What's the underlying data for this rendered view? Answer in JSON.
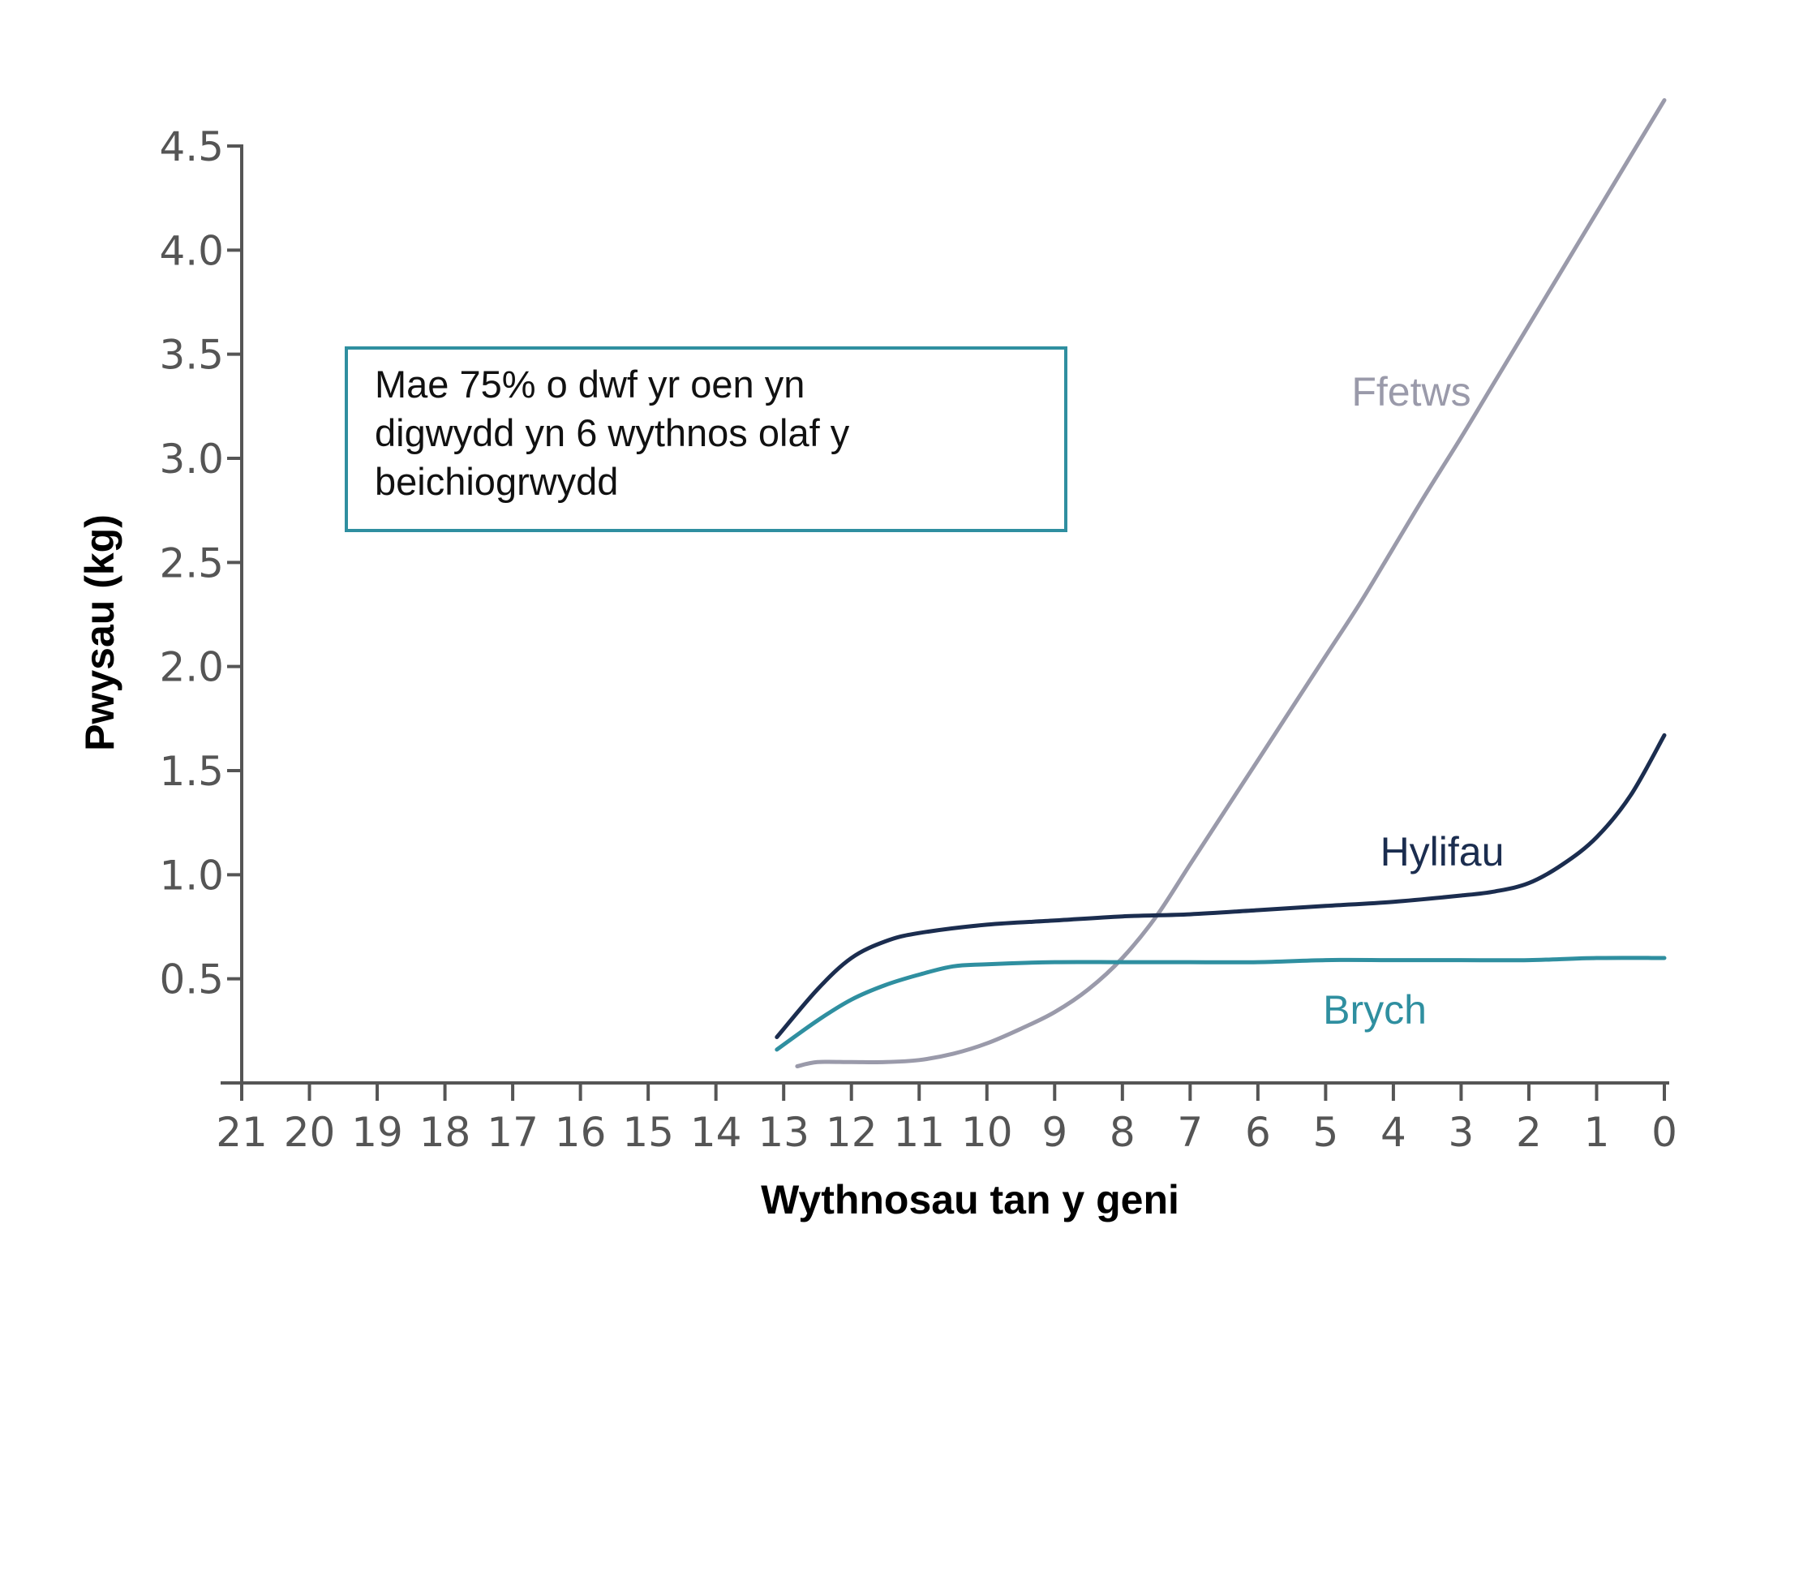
{
  "chart_data": {
    "type": "line",
    "title": "",
    "xlabel": "Wythnosau tan y geni",
    "ylabel": "Pwysau (kg)",
    "x_ticks": [
      "21",
      "20",
      "19",
      "18",
      "17",
      "16",
      "15",
      "14",
      "13",
      "12",
      "11",
      "10",
      "9",
      "8",
      "7",
      "6",
      "5",
      "4",
      "3",
      "2",
      "1",
      "0"
    ],
    "y_ticks": [
      "0.5",
      "1.0",
      "1.5",
      "2.0",
      "2.5",
      "3.0",
      "3.5",
      "4.0",
      "4.5"
    ],
    "xlim": [
      21,
      0
    ],
    "ylim": [
      0,
      4.5
    ],
    "grid": false,
    "series": [
      {
        "name": "Ffetws",
        "color": "#9a9aaa",
        "x": [
          12.8,
          12.5,
          12,
          11.5,
          11,
          10.5,
          10,
          9.5,
          9,
          8.5,
          8,
          7.5,
          7,
          6.5,
          6,
          5.5,
          5,
          4.5,
          4,
          3.5,
          3,
          2.5,
          2,
          1.5,
          1,
          0.5,
          0
        ],
        "y": [
          0.08,
          0.1,
          0.1,
          0.1,
          0.11,
          0.14,
          0.19,
          0.26,
          0.34,
          0.45,
          0.6,
          0.8,
          1.05,
          1.3,
          1.55,
          1.8,
          2.05,
          2.3,
          2.57,
          2.84,
          3.1,
          3.37,
          3.64,
          3.91,
          4.18,
          4.45,
          4.72
        ]
      },
      {
        "name": "Hylifau",
        "color": "#1b2d4f",
        "x": [
          13.1,
          12.5,
          12,
          11.5,
          11,
          10,
          9,
          8,
          7,
          6,
          5,
          4,
          3,
          2.5,
          2,
          1.5,
          1,
          0.5,
          0
        ],
        "y": [
          0.22,
          0.45,
          0.6,
          0.68,
          0.72,
          0.76,
          0.78,
          0.8,
          0.81,
          0.83,
          0.85,
          0.87,
          0.9,
          0.92,
          0.96,
          1.05,
          1.18,
          1.38,
          1.67
        ]
      },
      {
        "name": "Brych",
        "color": "#2f8fa0",
        "x": [
          13.1,
          12.5,
          12,
          11.5,
          11,
          10.5,
          10,
          9,
          8,
          7,
          6,
          5,
          4,
          3,
          2,
          1,
          0
        ],
        "y": [
          0.16,
          0.3,
          0.4,
          0.47,
          0.52,
          0.56,
          0.57,
          0.58,
          0.58,
          0.58,
          0.58,
          0.59,
          0.59,
          0.59,
          0.59,
          0.6,
          0.6
        ]
      }
    ],
    "annotation": {
      "lines": [
        "Mae 75% o dwf yr oen yn",
        "digwydd yn 6 wythnos olaf y",
        "beichiogrwydd"
      ],
      "border_color": "#2f8fa0"
    },
    "colors": {
      "axis": "#555555",
      "text": "#000000"
    }
  }
}
